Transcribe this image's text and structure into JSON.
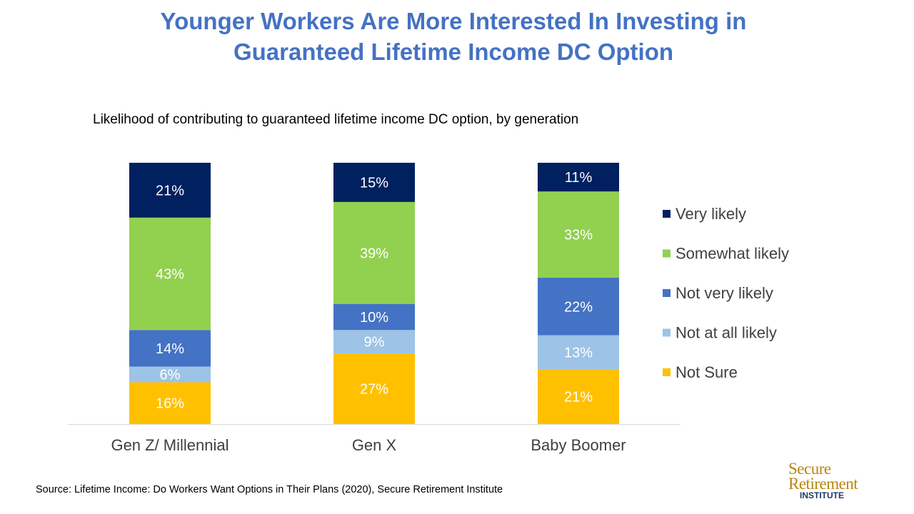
{
  "title_line1": "Younger Workers Are More Interested In Investing in",
  "title_line2": "Guaranteed Lifetime Income DC Option",
  "source": "Source: Lifetime Income: Do Workers Want Options in Their Plans (2020), Secure Retirement Institute",
  "logo": {
    "line1": "Secure",
    "line2": "Retirement",
    "line3": "INSTITUTE"
  },
  "chart_data": {
    "type": "bar",
    "stacked": true,
    "title": "Likelihood of contributing to guaranteed lifetime income DC option, by generation",
    "categories": [
      "Gen Z/ Millennial",
      "Gen X",
      "Baby Boomer"
    ],
    "series": [
      {
        "name": "Not Sure",
        "values": [
          16,
          27,
          21
        ],
        "color": "#FFC000"
      },
      {
        "name": "Not at all likely",
        "values": [
          6,
          9,
          13
        ],
        "color": "#9DC3E6"
      },
      {
        "name": "Not very likely",
        "values": [
          14,
          10,
          22
        ],
        "color": "#4472C4"
      },
      {
        "name": "Somewhat likely",
        "values": [
          43,
          39,
          33
        ],
        "color": "#92D050"
      },
      {
        "name": "Very likely",
        "values": [
          21,
          15,
          11
        ],
        "color": "#002060"
      }
    ],
    "value_suffix": "%",
    "legend_position": "right",
    "legend_order": [
      "Very likely",
      "Somewhat likely",
      "Not very likely",
      "Not at all likely",
      "Not Sure"
    ],
    "ylim": [
      0,
      100
    ],
    "grid": false
  }
}
